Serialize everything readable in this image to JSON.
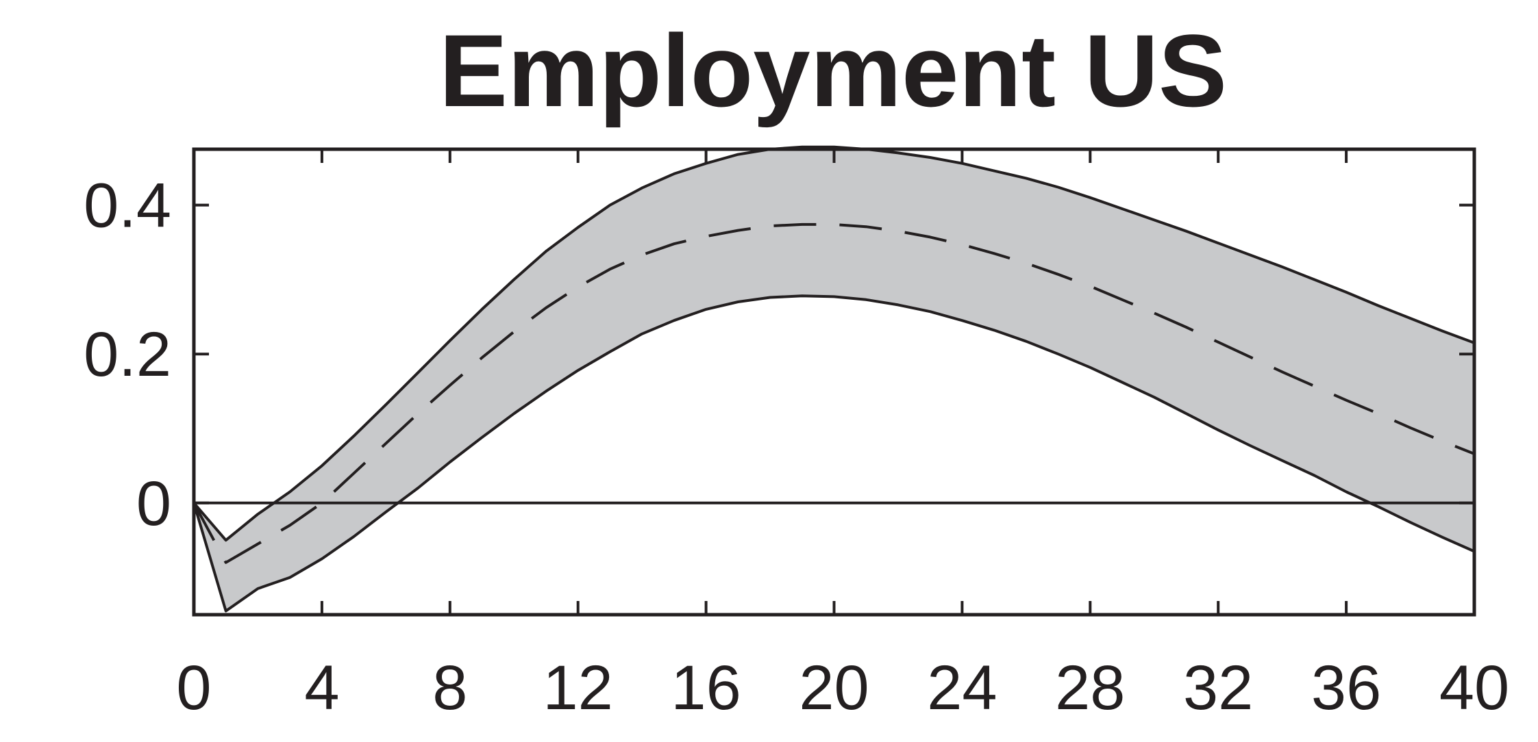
{
  "chart_data": {
    "type": "line",
    "title": "Employment US",
    "xlabel": "",
    "ylabel": "",
    "xlim": [
      0,
      40
    ],
    "ylim": [
      -0.15,
      0.475
    ],
    "x_ticks": [
      0,
      4,
      8,
      12,
      16,
      20,
      24,
      28,
      32,
      36,
      40
    ],
    "y_ticks": [
      0,
      0.2,
      0.4
    ],
    "y_tick_labels": [
      "0",
      "0.2",
      "0.4"
    ],
    "zero_line": true,
    "grid": false,
    "legend": "none",
    "colors": {
      "band": "#c8c9cb",
      "line": "#231f20"
    },
    "x": [
      0,
      1,
      2,
      3,
      4,
      5,
      6,
      7,
      8,
      9,
      10,
      11,
      12,
      13,
      14,
      15,
      16,
      17,
      18,
      19,
      20,
      21,
      22,
      23,
      24,
      25,
      26,
      27,
      28,
      29,
      30,
      31,
      32,
      33,
      34,
      35,
      36,
      37,
      38,
      39,
      40
    ],
    "series": [
      {
        "role": "upper_band",
        "values": [
          0.0,
          -0.05,
          -0.015,
          0.015,
          0.05,
          0.09,
          0.132,
          0.175,
          0.218,
          0.26,
          0.3,
          0.338,
          0.37,
          0.4,
          0.423,
          0.442,
          0.456,
          0.468,
          0.475,
          0.478,
          0.478,
          0.475,
          0.47,
          0.464,
          0.456,
          0.446,
          0.436,
          0.424,
          0.41,
          0.395,
          0.38,
          0.365,
          0.349,
          0.333,
          0.317,
          0.3,
          0.283,
          0.265,
          0.248,
          0.231,
          0.215
        ]
      },
      {
        "role": "median",
        "style": "dashed",
        "values": [
          0.0,
          -0.08,
          -0.055,
          -0.03,
          0.0,
          0.04,
          0.08,
          0.12,
          0.158,
          0.195,
          0.23,
          0.262,
          0.29,
          0.314,
          0.333,
          0.348,
          0.358,
          0.366,
          0.372,
          0.374,
          0.374,
          0.371,
          0.365,
          0.357,
          0.347,
          0.335,
          0.322,
          0.307,
          0.291,
          0.273,
          0.255,
          0.236,
          0.216,
          0.196,
          0.176,
          0.157,
          0.138,
          0.12,
          0.101,
          0.083,
          0.066
        ]
      },
      {
        "role": "lower_band",
        "values": [
          0.0,
          -0.145,
          -0.115,
          -0.1,
          -0.075,
          -0.045,
          -0.012,
          0.02,
          0.055,
          0.088,
          0.12,
          0.15,
          0.178,
          0.203,
          0.227,
          0.245,
          0.26,
          0.27,
          0.276,
          0.278,
          0.277,
          0.273,
          0.266,
          0.257,
          0.245,
          0.232,
          0.217,
          0.2,
          0.182,
          0.162,
          0.142,
          0.12,
          0.098,
          0.077,
          0.057,
          0.037,
          0.015,
          -0.005,
          -0.026,
          -0.046,
          -0.065
        ]
      }
    ]
  }
}
